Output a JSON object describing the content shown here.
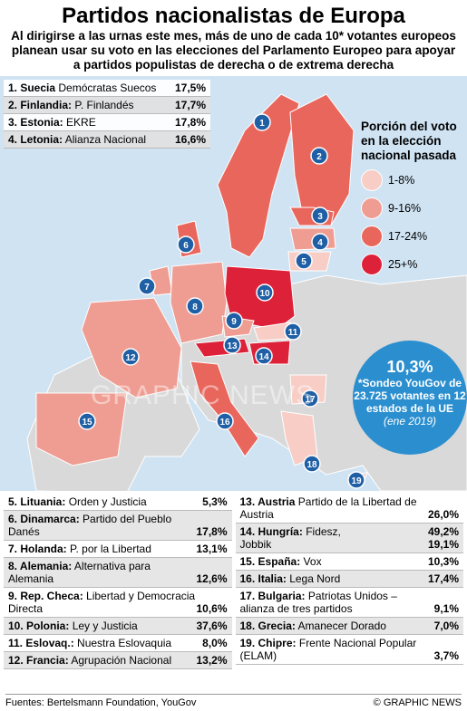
{
  "title": "Partidos nacionalistas de Europa",
  "subtitle": "Al dirigirse a las urnas este mes, más de uno de cada 10* votantes europeos planean usar su voto en las elecciones del Parlamento Europeo para apoyar a partidos populistas de derecha o de extrema derecha",
  "legend": {
    "title": "Porción del voto en la elección nacional pasada",
    "items": [
      {
        "label": "1-8%",
        "color": "#f7cdc6"
      },
      {
        "label": "9-16%",
        "color": "#ef9d92"
      },
      {
        "label": "17-24%",
        "color": "#e8665c"
      },
      {
        "label": "25+%",
        "color": "#dc2139"
      }
    ]
  },
  "callout": {
    "value": "10,3%",
    "text": "*Sondeo YouGov de 23.725 votantes en 12 estados de la UE",
    "date": "(ene 2019)"
  },
  "watermark": "GRAPHIC NEWS",
  "map_markers": [
    "1",
    "2",
    "3",
    "4",
    "5",
    "6",
    "7",
    "8",
    "9",
    "10",
    "11",
    "12",
    "13",
    "14",
    "15",
    "16",
    "17",
    "18",
    "19"
  ],
  "top_entries": [
    {
      "label": "1. Suecia",
      "party": [
        "Demócratas Suecos"
      ],
      "pct": [
        "17,5%"
      ]
    },
    {
      "label": "2. Finlandia:",
      "party": [
        "P. Finlandés"
      ],
      "pct": [
        "17,7%"
      ]
    },
    {
      "label": "3. Estonia:",
      "party": [
        "EKRE"
      ],
      "pct": [
        "17,8%"
      ]
    },
    {
      "label": "4. Letonia:",
      "party": [
        "Alianza Nacional"
      ],
      "pct": [
        "16,6%"
      ]
    }
  ],
  "left_entries": [
    {
      "label": "5. Lituania:",
      "party": [
        "Orden y Justicia"
      ],
      "pct": [
        "5,3%"
      ]
    },
    {
      "label": "6. Dinamarca:",
      "party": [
        "Partido del Pueblo Danés"
      ],
      "pct": [
        "17,8%"
      ]
    },
    {
      "label": "7. Holanda:",
      "party": [
        "P. por la Libertad"
      ],
      "pct": [
        "13,1%"
      ]
    },
    {
      "label": "8. Alemania:",
      "party": [
        "Alternativa para Alemania"
      ],
      "pct": [
        "12,6%"
      ]
    },
    {
      "label": "9. Rep. Checa:",
      "party": [
        "Libertad y Democracia Directa"
      ],
      "pct": [
        "10,6%"
      ]
    },
    {
      "label": "10. Polonia:",
      "party": [
        "Ley y Justicia"
      ],
      "pct": [
        "37,6%"
      ]
    },
    {
      "label": "11. Eslovaq.:",
      "party": [
        "Nuestra Eslovaquia"
      ],
      "pct": [
        "8,0%"
      ]
    },
    {
      "label": "12. Francia:",
      "party": [
        "Agrupación Nacional"
      ],
      "pct": [
        "13,2%"
      ]
    }
  ],
  "right_entries": [
    {
      "label": "13. Austria",
      "party": [
        "Partido de la Libertad de Austria"
      ],
      "pct": [
        "26,0%"
      ]
    },
    {
      "label": "14. Hungría:",
      "party": [
        "Fidesz,",
        "Jobbik"
      ],
      "pct": [
        "49,2%",
        "19,1%"
      ]
    },
    {
      "label": "15. España:",
      "party": [
        "Vox"
      ],
      "pct": [
        "10,3%"
      ]
    },
    {
      "label": "16. Italia:",
      "party": [
        "Lega Nord"
      ],
      "pct": [
        "17,4%"
      ]
    },
    {
      "label": "17. Bulgaria:",
      "party": [
        "Patriotas Unidos – alianza de tres partidos"
      ],
      "pct": [
        "9,1%"
      ]
    },
    {
      "label": "18. Grecia:",
      "party": [
        "Amanecer Dorado"
      ],
      "pct": [
        "7,0%"
      ]
    },
    {
      "label": "19. Chipre:",
      "party": [
        "Frente Nacional Popular (ELAM)"
      ],
      "pct": [
        "3,7%"
      ]
    }
  ],
  "sources": "Fuentes: Bertelsmann Foundation, YouGov",
  "credit": "© GRAPHIC NEWS"
}
